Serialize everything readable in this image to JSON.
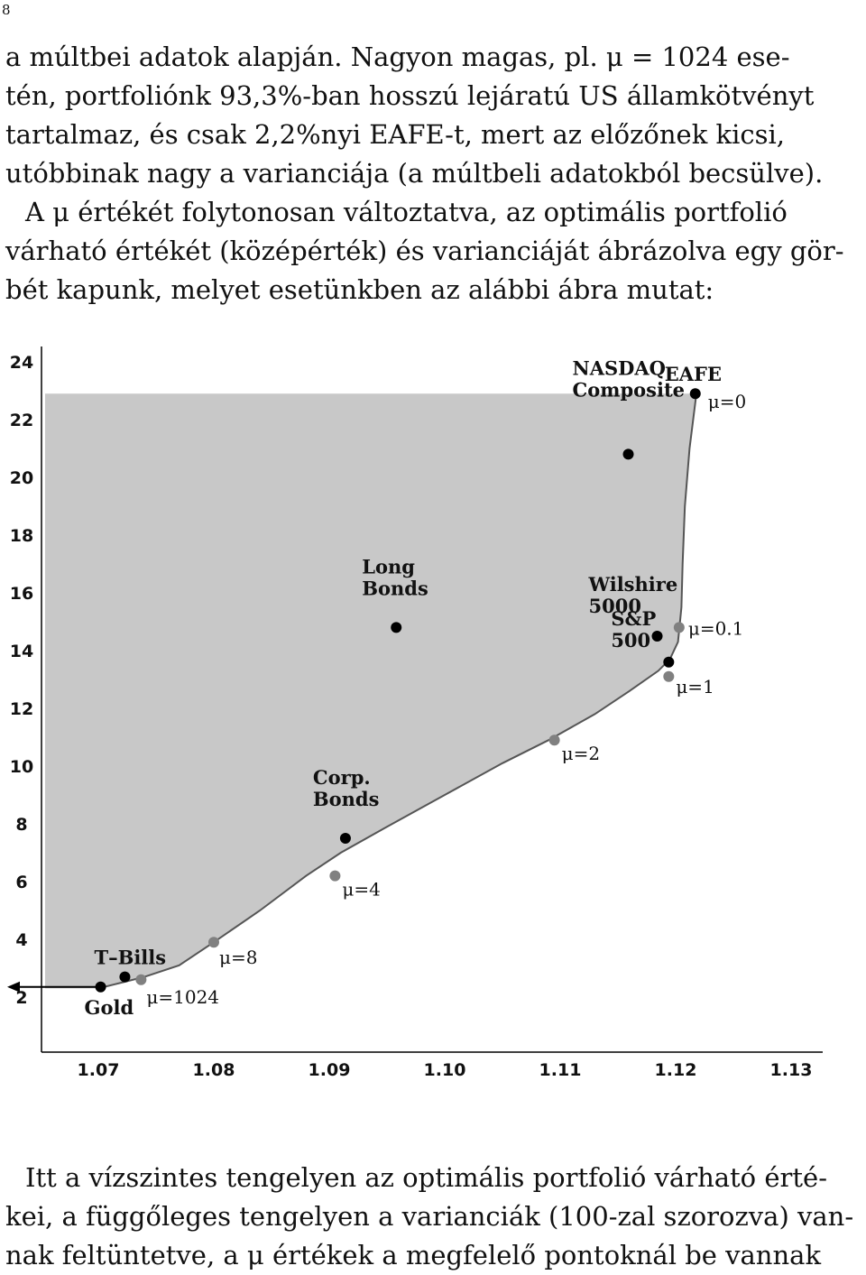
{
  "page_number": "8",
  "paragraph_1": {
    "lines": [
      "a múltbei adatok alapján.  Nagyon magas, pl. μ = 1024 ese-",
      "tén, portfoliónk 93,3%-ban hosszú lejáratú US államkötvényt",
      "tartalmaz, és csak 2,2%nyi EAFE-t, mert az előzőnek kicsi,",
      "utóbbinak nagy a varianciája (a múltbeli adatokból becsülve).",
      "A μ értékét folytonosan változtatva, az optimális portfolió",
      "várható értékét (középérték) és varianciáját ábrázolva egy gör-",
      "bét kapunk, melyet esetünkben az alábbi ábra mutat:"
    ]
  },
  "paragraph_2": {
    "lines": [
      "Itt a vízszintes tengelyen az optimális portfolió várható érté-",
      "kei, a függőleges tengelyen a varianciák (100-zal szorozva) van-",
      "nak feltüntetve, a μ értékek a megfelelő pontoknál be vannak"
    ]
  },
  "chart_data": {
    "type": "scatter",
    "x_ticks": [
      "1.07",
      "1.08",
      "1.09",
      "1.10",
      "1.11",
      "1.12",
      "1.13"
    ],
    "y_ticks": [
      "2",
      "4",
      "6",
      "8",
      "10",
      "12",
      "14",
      "16",
      "18",
      "20",
      "22",
      "24"
    ],
    "xlim": [
      1.065,
      1.1325
    ],
    "ylim": [
      0,
      25
    ],
    "grid": false,
    "fill_color": "#c8c8c8",
    "asset_color": "#000000",
    "mu_color": "#808080",
    "frontier": [
      {
        "x": 1.07,
        "y": 2.3
      },
      {
        "x": 1.072,
        "y": 2.5
      },
      {
        "x": 1.074,
        "y": 2.7
      },
      {
        "x": 1.077,
        "y": 3.1
      },
      {
        "x": 1.08,
        "y": 3.9
      },
      {
        "x": 1.084,
        "y": 5.0
      },
      {
        "x": 1.088,
        "y": 6.2
      },
      {
        "x": 1.091,
        "y": 7.0
      },
      {
        "x": 1.095,
        "y": 7.9
      },
      {
        "x": 1.1,
        "y": 9.0
      },
      {
        "x": 1.105,
        "y": 10.1
      },
      {
        "x": 1.109,
        "y": 10.9
      },
      {
        "x": 1.113,
        "y": 11.8
      },
      {
        "x": 1.116,
        "y": 12.6
      },
      {
        "x": 1.1185,
        "y": 13.3
      },
      {
        "x": 1.1195,
        "y": 13.7
      },
      {
        "x": 1.1202,
        "y": 14.3
      },
      {
        "x": 1.1205,
        "y": 15.5
      },
      {
        "x": 1.1206,
        "y": 17.0
      },
      {
        "x": 1.1208,
        "y": 19.0
      },
      {
        "x": 1.1212,
        "y": 21.0
      },
      {
        "x": 1.1218,
        "y": 22.9
      }
    ],
    "assets": [
      {
        "label_lines": [
          "EAFE"
        ],
        "x": 1.1217,
        "y": 22.9
      },
      {
        "label_lines": [
          "NASDAQ",
          "Composite"
        ],
        "x": 1.1159,
        "y": 20.8
      },
      {
        "label_lines": [
          "Long",
          "Bonds"
        ],
        "x": 1.0958,
        "y": 14.8
      },
      {
        "label_lines": [
          "Wilshire",
          "5000"
        ],
        "x": 1.1184,
        "y": 14.5
      },
      {
        "label_lines": [
          "S&P",
          "500"
        ],
        "x": 1.1194,
        "y": 13.6
      },
      {
        "label_lines": [
          "Corp.",
          "Bonds"
        ],
        "x": 1.0914,
        "y": 7.5
      },
      {
        "label_lines": [
          "T–Bills"
        ],
        "x": 1.0723,
        "y": 2.7
      },
      {
        "label_lines": [
          "Gold"
        ],
        "x": 1.0702,
        "y": 2.35
      }
    ],
    "mu_points": [
      {
        "label": "μ=0",
        "x": 1.1217,
        "y": 22.9
      },
      {
        "label": "μ=0.1",
        "x": 1.1203,
        "y": 14.8
      },
      {
        "label": "μ=1",
        "x": 1.1194,
        "y": 13.1
      },
      {
        "label": "μ=2",
        "x": 1.1095,
        "y": 10.9
      },
      {
        "label": "μ=4",
        "x": 1.0905,
        "y": 6.2
      },
      {
        "label": "μ=8",
        "x": 1.08,
        "y": 3.9
      },
      {
        "label": "μ=1024",
        "x": 1.0737,
        "y": 2.6
      }
    ]
  }
}
